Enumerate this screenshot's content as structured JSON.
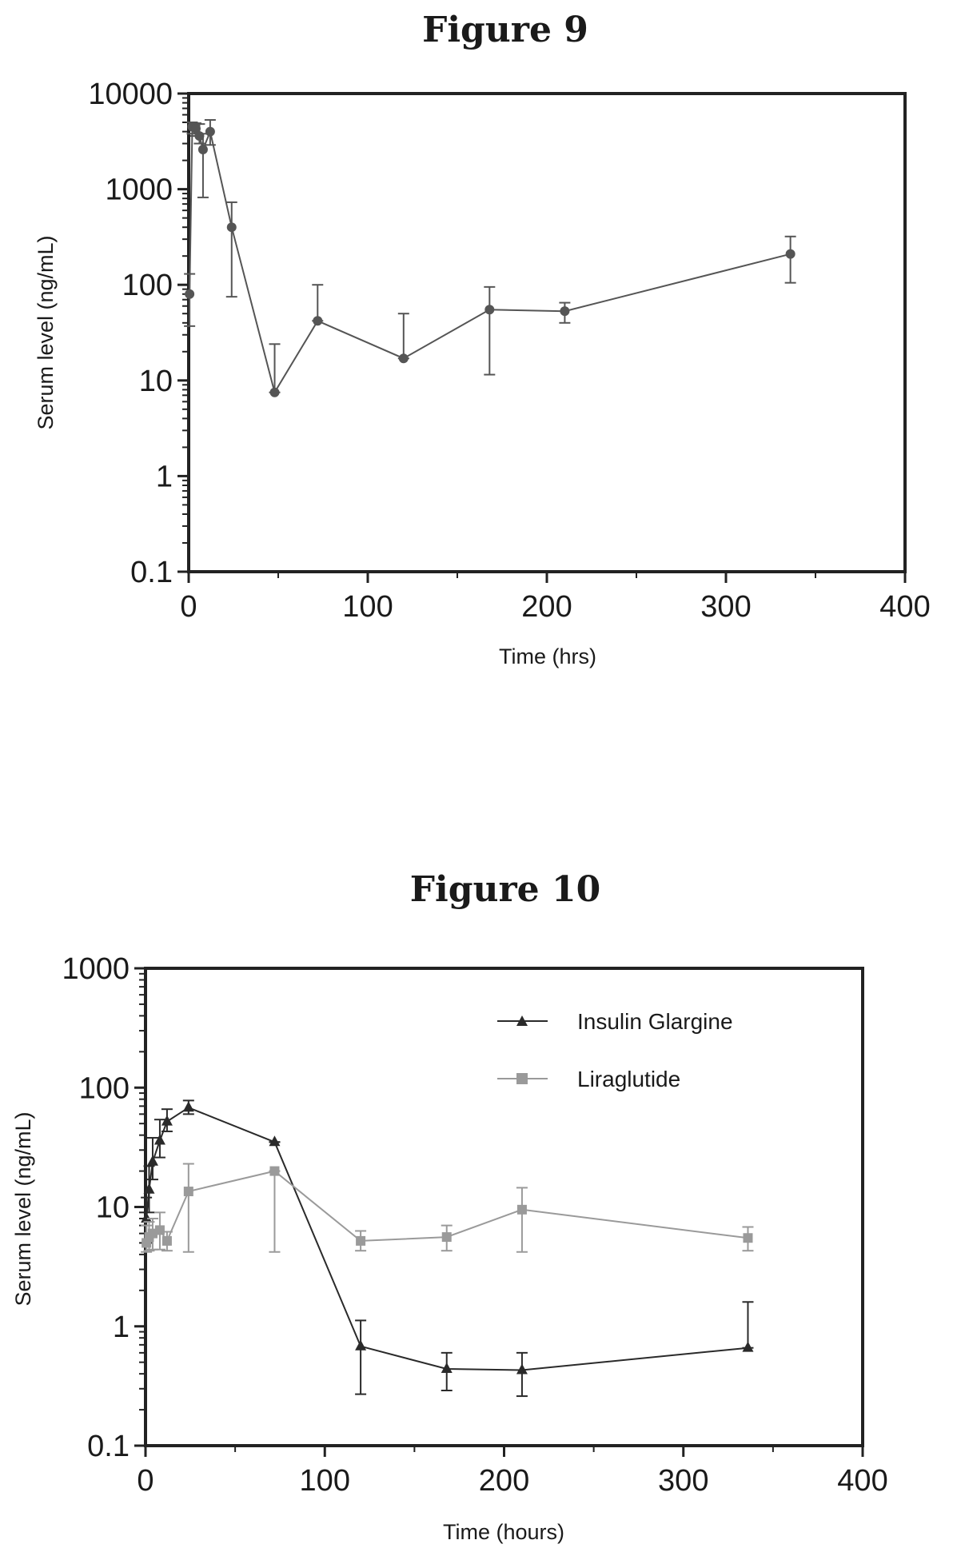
{
  "chart_data": [
    {
      "type": "line",
      "title": "Figure 9",
      "xlabel": "Time (hrs)",
      "ylabel": "Serum level (ng/mL)",
      "xlim": [
        0,
        400
      ],
      "ylim": [
        0.1,
        10000
      ],
      "yscale": "log",
      "x_ticks": [
        "0",
        "100",
        "200",
        "300",
        "400"
      ],
      "y_ticks": [
        "0.1",
        "1",
        "10",
        "100",
        "1000",
        "10000"
      ],
      "grid": false,
      "color": "#555555",
      "series": [
        {
          "marker": "circle",
          "x": [
            0.5,
            2,
            4,
            6,
            8,
            12,
            24,
            48,
            72,
            120,
            168,
            210,
            336
          ],
          "y": [
            80,
            4500,
            4300,
            3600,
            2600,
            4000,
            400,
            7.5,
            42,
            17,
            55,
            53,
            210
          ],
          "err_upper": [
            130,
            5000,
            4900,
            4800,
            3800,
            5300,
            730,
            24,
            100,
            50,
            95,
            65,
            320
          ],
          "err_lower": [
            37,
            3800,
            3600,
            3000,
            820,
            2900,
            75,
            7.5,
            42,
            17,
            11.5,
            40,
            105
          ]
        }
      ]
    },
    {
      "type": "line",
      "title": "Figure 10",
      "xlabel": "Time (hours)",
      "ylabel": "Serum level (ng/mL)",
      "xlim": [
        0,
        400
      ],
      "ylim": [
        0.1,
        1000
      ],
      "yscale": "log",
      "x_ticks": [
        "0",
        "100",
        "200",
        "300",
        "400"
      ],
      "y_ticks": [
        "0.1",
        "1",
        "10",
        "100",
        "1000"
      ],
      "grid": false,
      "legend_position": "top-right",
      "series": [
        {
          "name": "Insulin Glargine",
          "marker": "triangle",
          "color": "#2a2a2a",
          "x": [
            0.5,
            2,
            4,
            8,
            12,
            24,
            72,
            120,
            168,
            210,
            336
          ],
          "y": [
            8,
            14,
            24,
            36,
            52,
            68,
            35,
            0.68,
            0.44,
            0.43,
            0.66
          ],
          "err_upper": [
            12,
            22,
            38,
            54,
            66,
            78,
            35,
            1.12,
            0.6,
            0.6,
            1.6
          ],
          "err_lower": [
            5,
            9,
            17,
            26,
            43,
            60,
            35,
            0.27,
            0.29,
            0.26,
            0.66
          ]
        },
        {
          "name": "Liraglutide",
          "marker": "square",
          "color": "#9a9a9a",
          "x": [
            0.5,
            2,
            4,
            8,
            12,
            24,
            72,
            120,
            168,
            210,
            336
          ],
          "y": [
            5,
            5.6,
            6,
            6.4,
            5.2,
            13.5,
            20,
            5.2,
            5.6,
            9.5,
            5.5
          ],
          "err_upper": [
            7,
            7.5,
            8,
            9,
            6.2,
            23,
            20,
            6.3,
            7,
            14.5,
            6.8
          ],
          "err_lower": [
            4.2,
            4.3,
            4.4,
            4.4,
            4.3,
            4.2,
            4.2,
            4.3,
            4.3,
            4.2,
            4.3
          ]
        }
      ]
    }
  ]
}
